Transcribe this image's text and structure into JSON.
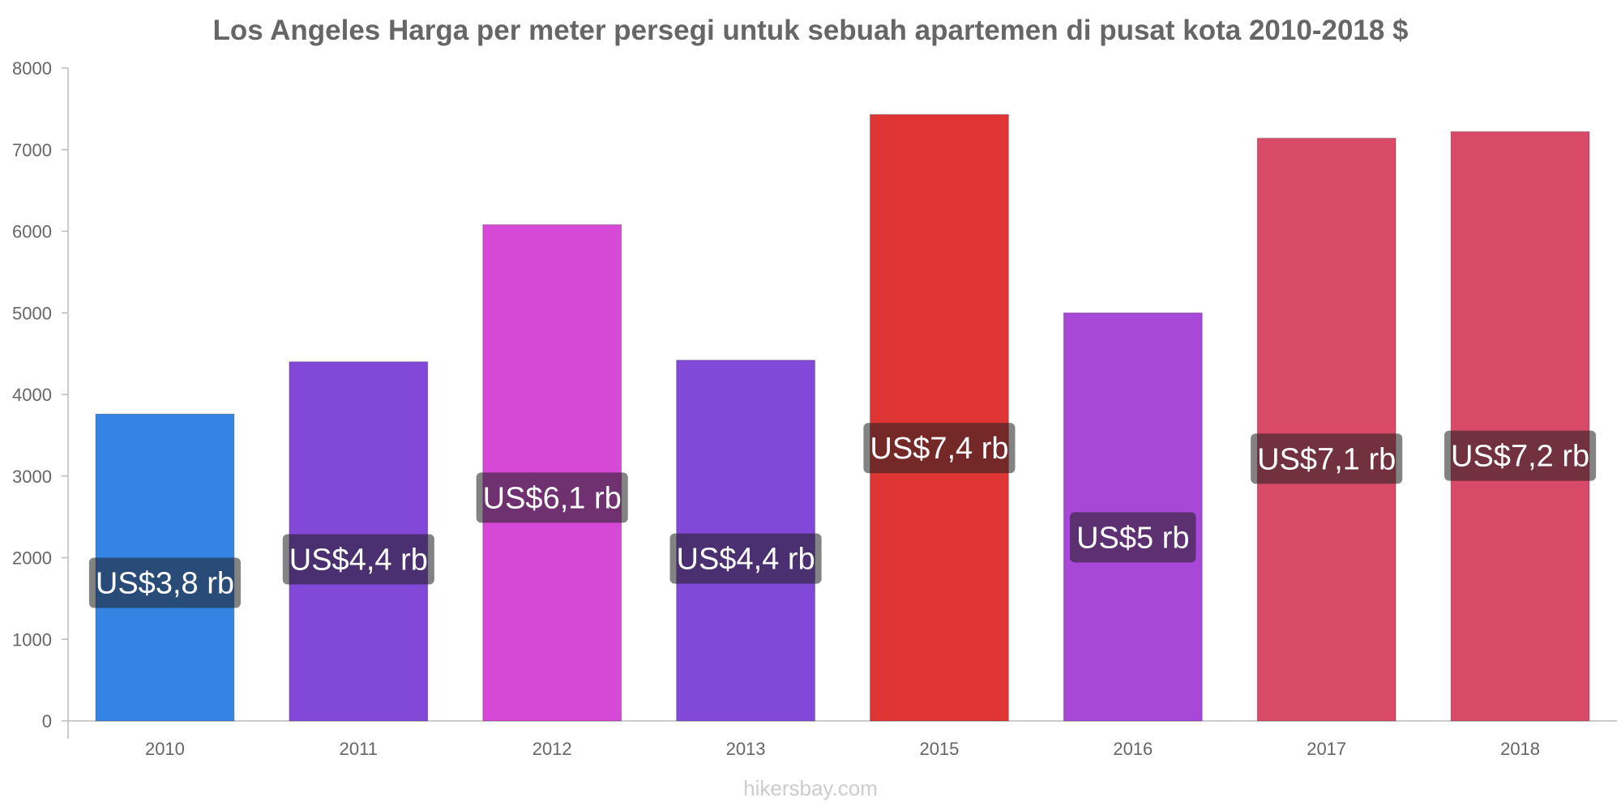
{
  "chart_data": {
    "type": "bar",
    "title": "Los Angeles Harga per meter persegi untuk sebuah apartemen di pusat kota 2010-2018 $",
    "categories": [
      "2010",
      "2011",
      "2012",
      "2013",
      "2015",
      "2016",
      "2017",
      "2018"
    ],
    "values": [
      3760,
      4400,
      6080,
      4420,
      7430,
      5000,
      7140,
      7220
    ],
    "data_labels": [
      "US$3,8 rb",
      "US$4,4 rb",
      "US$6,1 rb",
      "US$4,4 rb",
      "US$7,4 rb",
      "US$5 rb",
      "US$7,1 rb",
      "US$7,2 rb"
    ],
    "colors": [
      "#3584e4",
      "#8248d8",
      "#d649d6",
      "#8248d8",
      "#e03535",
      "#a848d8",
      "#d94a68",
      "#d94a68"
    ],
    "ylim": [
      0,
      8000
    ],
    "yticks": [
      0,
      1000,
      2000,
      3000,
      4000,
      5000,
      6000,
      7000,
      8000
    ],
    "grid": false,
    "legend": "none"
  },
  "watermark": "hikersbay.com"
}
